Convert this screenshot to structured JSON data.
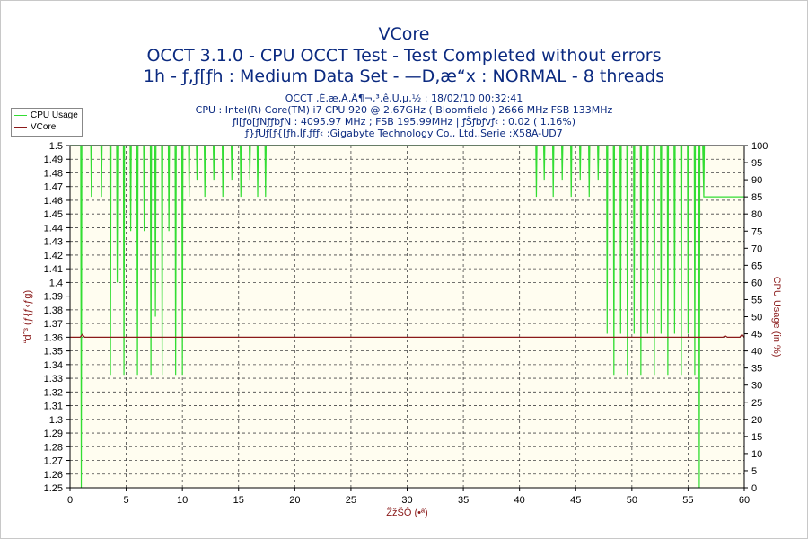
{
  "header": {
    "title": "VCore",
    "subtitle1": "OCCT 3.1.0 - CPU OCCT Test - Test Completed without errors",
    "subtitle2": "1h - ƒ‚ƒ[ƒh : Medium Data Set - —D‚æ“x : NORMAL - 8 threads"
  },
  "info": {
    "line1": "OCCT ‚É‚æ‚Á‚Ä¶¬‚³‚ê‚Ü‚µ‚½ : 18/02/10 00:32:41",
    "line2": "CPU : Intel(R) Core(TM) i7 CPU 920 @ 2.67GHz ( Bloomfield ) 2666 MHz FSB 133MHz",
    "line3": "ƒI[ƒo[ƒNƒƒbƒN : 4095.97 MHz ; FSB 195.99MHz | ƒŠƒbƒvƒ‹ : 0.02 ( 1.16%)",
    "line4": "ƒ}ƒUƒ[ƒ{[ƒh‚Ìƒ‚ƒfƒ‹ :Gigabyte Technology Co., Ltd.,Serie :X58A-UD7"
  },
  "colors": {
    "cpu_usage": "#33dd33",
    "vcore": "#8b1a1a",
    "plot_bg": "#fffdf0",
    "grid": "#444444",
    "axis_label": "#8a1a1a"
  },
  "chart_data": {
    "type": "line",
    "xlabel": "ŽžŠÔ (•ª)",
    "ylabel_left": "“dˆ³ (ƒ{ƒ‹ƒg)",
    "ylabel_right": "CPU Usage (in %)",
    "xlim": [
      0,
      60
    ],
    "xticks": [
      0,
      5,
      10,
      15,
      20,
      25,
      30,
      35,
      40,
      45,
      50,
      55,
      60
    ],
    "ylim_left": [
      1.25,
      1.5
    ],
    "yticks_left": [
      "1.25",
      "1.26",
      "1.27",
      "1.28",
      "1.29",
      "1.3",
      "1.31",
      "1.32",
      "1.33",
      "1.34",
      "1.35",
      "1.36",
      "1.37",
      "1.38",
      "1.39",
      "1.4",
      "1.41",
      "1.42",
      "1.43",
      "1.44",
      "1.45",
      "1.46",
      "1.47",
      "1.48",
      "1.49",
      "1.5"
    ],
    "ylim_right": [
      0,
      100
    ],
    "yticks_right": [
      "0",
      "5",
      "10",
      "15",
      "20",
      "25",
      "30",
      "35",
      "40",
      "45",
      "50",
      "55",
      "60",
      "65",
      "70",
      "75",
      "80",
      "85",
      "90",
      "95",
      "100"
    ],
    "grid": true,
    "legend_position": "top-left",
    "series": [
      {
        "name": "CPU Usage",
        "axis": "right",
        "baseline": 100,
        "dips": [
          [
            1.0,
            0
          ],
          [
            1.9,
            85
          ],
          [
            2.8,
            85
          ],
          [
            3.6,
            33
          ],
          [
            4.2,
            60
          ],
          [
            4.8,
            33
          ],
          [
            5.4,
            75
          ],
          [
            6.0,
            33
          ],
          [
            6.6,
            75
          ],
          [
            7.2,
            33
          ],
          [
            7.6,
            50
          ],
          [
            8.2,
            33
          ],
          [
            8.8,
            75
          ],
          [
            9.4,
            33
          ],
          [
            10.0,
            33
          ],
          [
            10.6,
            85
          ],
          [
            11.3,
            90
          ],
          [
            12.0,
            85
          ],
          [
            12.8,
            90
          ],
          [
            13.6,
            85
          ],
          [
            14.4,
            90
          ],
          [
            15.2,
            85
          ],
          [
            16.0,
            90
          ],
          [
            16.7,
            85
          ],
          [
            17.4,
            85
          ],
          [
            41.5,
            85
          ],
          [
            42.2,
            90
          ],
          [
            43.0,
            85
          ],
          [
            43.8,
            90
          ],
          [
            44.6,
            85
          ],
          [
            45.4,
            90
          ],
          [
            46.2,
            85
          ],
          [
            47.0,
            90
          ],
          [
            47.8,
            45
          ],
          [
            48.4,
            33
          ],
          [
            49.0,
            45
          ],
          [
            49.6,
            33
          ],
          [
            50.2,
            45
          ],
          [
            50.8,
            33
          ],
          [
            51.4,
            45
          ],
          [
            52.0,
            33
          ],
          [
            52.6,
            45
          ],
          [
            53.2,
            33
          ],
          [
            53.8,
            45
          ],
          [
            54.4,
            33
          ],
          [
            55.0,
            45
          ],
          [
            55.6,
            33
          ],
          [
            56.0,
            0
          ],
          [
            56.4,
            85
          ]
        ],
        "end_value": 85
      },
      {
        "name": "VCore",
        "axis": "left",
        "value": 1.36,
        "blips": [
          [
            1.1,
            1.362
          ],
          [
            58.3,
            1.361
          ],
          [
            59.8,
            1.362
          ]
        ]
      }
    ]
  }
}
